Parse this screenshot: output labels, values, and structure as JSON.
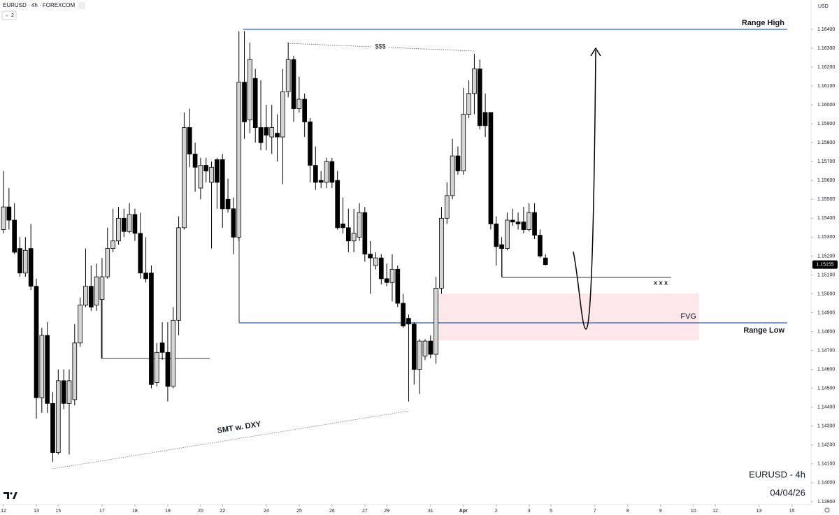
{
  "chart_data": {
    "type": "candlestick",
    "symbol_title": "EURUSD · 4h · FOREXCOM",
    "indicator_count": 2,
    "currency": "USD",
    "watermark_symbol": "EURUSD - 4h",
    "watermark_date": "04/04/26",
    "annotations": {
      "range_high": "Range High",
      "range_low": "Range Low",
      "liquidity": "$$$",
      "smt": "SMT w. DXY",
      "fvg": "FVG",
      "marks": "x x x"
    },
    "last_price": 1.15155,
    "up_color": "#d4d4d4",
    "down_color": "#000000",
    "x": [
      0,
      1,
      2,
      3,
      4,
      5,
      6,
      7,
      8,
      9,
      10,
      11,
      12,
      13,
      14,
      15,
      16,
      17,
      18,
      19,
      20,
      21,
      22,
      23,
      24,
      25,
      26,
      27,
      28,
      29,
      30,
      31,
      32,
      33,
      34,
      35,
      36,
      37,
      38,
      39,
      40,
      41,
      42,
      43,
      44,
      45,
      46,
      47,
      48,
      49,
      50,
      51,
      52,
      53,
      54,
      55,
      56,
      57,
      58,
      59,
      60,
      61,
      62,
      63,
      64,
      65,
      66,
      67,
      68,
      69,
      70,
      71,
      72,
      73,
      74,
      75,
      76,
      77,
      78,
      79,
      80,
      81,
      82,
      83,
      84,
      85,
      86,
      87,
      88,
      89,
      90,
      91,
      92,
      93,
      94,
      95,
      96,
      97,
      98,
      99
    ],
    "open": [
      1.1534,
      1.1546,
      1.1539,
      1.1524,
      1.1511,
      1.1524,
      1.1504,
      1.1445,
      1.1478,
      1.1442,
      1.1416,
      1.1454,
      1.1442,
      1.1444,
      1.1474,
      1.1494,
      1.1504,
      1.1494,
      1.1497,
      1.1509,
      1.1524,
      1.1528,
      1.154,
      1.1533,
      1.1542,
      1.1532,
      1.1511,
      1.1511,
      1.1453,
      1.1474,
      1.1469,
      1.1451,
      1.1486,
      1.1535,
      1.1588,
      1.1574,
      1.1556,
      1.1568,
      1.1559,
      1.1571,
      1.1571,
      1.155,
      1.1545,
      1.153,
      1.1612,
      1.1592,
      1.1614,
      1.1588,
      1.1588,
      1.1583,
      1.1585,
      1.1583,
      1.1607,
      1.1624,
      1.1598,
      1.1603,
      1.1591,
      1.1568,
      1.156,
      1.1559,
      1.157,
      1.156,
      1.1537,
      1.1535,
      1.1528,
      1.153,
      1.1543,
      1.1521,
      1.1515,
      1.1519,
      1.1508,
      1.1506,
      1.1513,
      1.1495,
      1.1487,
      1.1484,
      1.146,
      1.1467,
      1.1475,
      1.1468,
      1.1503,
      1.154,
      1.1552,
      1.1573,
      1.1565,
      1.1595,
      1.1606,
      1.1619,
      1.1596,
      1.1596,
      1.1537,
      1.1526,
      1.1524,
      1.1539,
      1.1538,
      1.1538,
      1.1534,
      1.1543,
      1.1531,
      1.1519
    ],
    "high": [
      1.1565,
      1.1556,
      1.1548,
      1.153,
      1.153,
      1.1537,
      1.1508,
      1.1482,
      1.1485,
      1.1448,
      1.146,
      1.146,
      1.146,
      1.1484,
      1.1498,
      1.1524,
      1.1515,
      1.1516,
      1.1519,
      1.1535,
      1.1545,
      1.1546,
      1.1545,
      1.1548,
      1.1545,
      1.1543,
      1.153,
      1.1515,
      1.1474,
      1.1485,
      1.1485,
      1.1493,
      1.1541,
      1.1596,
      1.1598,
      1.158,
      1.1572,
      1.1572,
      1.157,
      1.1572,
      1.1574,
      1.1561,
      1.1551,
      1.1639,
      1.1639,
      1.1633,
      1.1619,
      1.1613,
      1.16,
      1.16,
      1.1595,
      1.1619,
      1.1633,
      1.1626,
      1.1615,
      1.1606,
      1.1593,
      1.1578,
      1.1565,
      1.1572,
      1.1572,
      1.1565,
      1.1551,
      1.1545,
      1.1545,
      1.1548,
      1.1546,
      1.1528,
      1.1522,
      1.1521,
      1.1516,
      1.1521,
      1.1515,
      1.15,
      1.1489,
      1.1485,
      1.1476,
      1.1476,
      1.1478,
      1.1509,
      1.1546,
      1.1559,
      1.1582,
      1.1578,
      1.1609,
      1.1613,
      1.1627,
      1.1624,
      1.1606,
      1.1596,
      1.1541,
      1.153,
      1.1543,
      1.1545,
      1.1543,
      1.1546,
      1.1548,
      1.1548,
      1.1534,
      1.1521
    ],
    "low": [
      1.1532,
      1.1534,
      1.1521,
      1.1509,
      1.1509,
      1.1502,
      1.1434,
      1.1437,
      1.1437,
      1.1411,
      1.1415,
      1.1439,
      1.1415,
      1.1441,
      1.1472,
      1.1493,
      1.1491,
      1.1491,
      1.1466,
      1.1508,
      1.1522,
      1.1526,
      1.153,
      1.1532,
      1.1528,
      1.1508,
      1.1506,
      1.145,
      1.1451,
      1.1465,
      1.1443,
      1.145,
      1.1478,
      1.1534,
      1.1567,
      1.1554,
      1.155,
      1.1559,
      1.1524,
      1.1545,
      1.1535,
      1.1543,
      1.1521,
      1.1528,
      1.1582,
      1.1585,
      1.158,
      1.1576,
      1.1576,
      1.1574,
      1.157,
      1.1558,
      1.1604,
      1.1591,
      1.1596,
      1.1583,
      1.1559,
      1.1555,
      1.1556,
      1.1556,
      1.1556,
      1.1534,
      1.1532,
      1.1522,
      1.1522,
      1.1528,
      1.1517,
      1.15,
      1.1513,
      1.1505,
      1.1504,
      1.1496,
      1.1493,
      1.1482,
      1.1443,
      1.1452,
      1.1447,
      1.1465,
      1.1466,
      1.1463,
      1.15,
      1.1537,
      1.155,
      1.1563,
      1.1563,
      1.1593,
      1.1595,
      1.1587,
      1.1583,
      1.1534,
      1.1515,
      1.1509,
      1.1523,
      1.1536,
      1.1534,
      1.1532,
      1.1533,
      1.1529,
      1.1519,
      1.1515
    ],
    "close": [
      1.1546,
      1.1539,
      1.1522,
      1.1511,
      1.1523,
      1.1504,
      1.1445,
      1.1478,
      1.1442,
      1.1416,
      1.1454,
      1.1442,
      1.1454,
      1.1474,
      1.1494,
      1.1504,
      1.1493,
      1.1509,
      1.1509,
      1.1524,
      1.1528,
      1.154,
      1.1533,
      1.1542,
      1.1532,
      1.1511,
      1.1508,
      1.1452,
      1.1469,
      1.1469,
      1.1451,
      1.1486,
      1.1535,
      1.1588,
      1.1574,
      1.1567,
      1.1568,
      1.1565,
      1.1567,
      1.1559,
      1.1545,
      1.1545,
      1.153,
      1.1612,
      1.1591,
      1.1624,
      1.1588,
      1.158,
      1.1584,
      1.1588,
      1.1583,
      1.1607,
      1.1624,
      1.1598,
      1.1603,
      1.1591,
      1.1568,
      1.1559,
      1.1559,
      1.157,
      1.1559,
      1.1535,
      1.1535,
      1.1528,
      1.1532,
      1.1543,
      1.1521,
      1.1519,
      1.1519,
      1.1508,
      1.1506,
      1.1513,
      1.1495,
      1.1483,
      1.1484,
      1.146,
      1.1475,
      1.1475,
      1.1468,
      1.1503,
      1.154,
      1.1552,
      1.1573,
      1.1565,
      1.1595,
      1.1606,
      1.1619,
      1.1589,
      1.1589,
      1.1537,
      1.1525,
      1.1524,
      1.1539,
      1.1538,
      1.1537,
      1.1534,
      1.1543,
      1.1531,
      1.152,
      1.15155
    ],
    "xlim": [
      -0.64,
      147.5
    ],
    "ylim": [
      1.13885,
      1.16555
    ],
    "xticks": [
      {
        "value": 0,
        "label": "12"
      },
      {
        "value": 6,
        "label": "13"
      },
      {
        "value": 10,
        "label": "15"
      },
      {
        "value": 18,
        "label": "17"
      },
      {
        "value": 24,
        "label": "18"
      },
      {
        "value": 30,
        "label": "19"
      },
      {
        "value": 36,
        "label": "20"
      },
      {
        "value": 40,
        "label": "22"
      },
      {
        "value": 48,
        "label": "24"
      },
      {
        "value": 54,
        "label": "25"
      },
      {
        "value": 60,
        "label": "26"
      },
      {
        "value": 66,
        "label": "27"
      },
      {
        "value": 70,
        "label": "29"
      },
      {
        "value": 78,
        "label": "31"
      },
      {
        "value": 84,
        "label": "Apr"
      },
      {
        "value": 90,
        "label": "2"
      },
      {
        "value": 96,
        "label": "3"
      },
      {
        "value": 100,
        "label": "5"
      },
      {
        "value": 108,
        "label": "7"
      },
      {
        "value": 114,
        "label": "8"
      },
      {
        "value": 120,
        "label": "9"
      },
      {
        "value": 126,
        "label": "10"
      },
      {
        "value": 130,
        "label": "12"
      },
      {
        "value": 138,
        "label": "13"
      },
      {
        "value": 144,
        "label": "15"
      }
    ],
    "yticks": [
      {
        "value": 1.139,
        "label": "1.13900"
      },
      {
        "value": 1.14,
        "label": "1.14000"
      },
      {
        "value": 1.141,
        "label": "1.14100"
      },
      {
        "value": 1.142,
        "label": "1.14200"
      },
      {
        "value": 1.143,
        "label": "1.14300"
      },
      {
        "value": 1.144,
        "label": "1.14400"
      },
      {
        "value": 1.145,
        "label": "1.14500"
      },
      {
        "value": 1.146,
        "label": "1.14600"
      },
      {
        "value": 1.147,
        "label": "1.14700"
      },
      {
        "value": 1.148,
        "label": "1.14800"
      },
      {
        "value": 1.149,
        "label": "1.14900"
      },
      {
        "value": 1.15,
        "label": "1.15000"
      },
      {
        "value": 1.151,
        "label": "1.15100"
      },
      {
        "value": 1.152,
        "label": "1.15200"
      },
      {
        "value": 1.153,
        "label": "1.15300"
      },
      {
        "value": 1.154,
        "label": "1.15400"
      },
      {
        "value": 1.155,
        "label": "1.15500"
      },
      {
        "value": 1.156,
        "label": "1.15600"
      },
      {
        "value": 1.157,
        "label": "1.15700"
      },
      {
        "value": 1.158,
        "label": "1.15800"
      },
      {
        "value": 1.159,
        "label": "1.15900"
      },
      {
        "value": 1.16,
        "label": "1.16000"
      },
      {
        "value": 1.161,
        "label": "1.16100"
      },
      {
        "value": 1.162,
        "label": "1.16200"
      },
      {
        "value": 1.163,
        "label": "1.16300"
      },
      {
        "value": 1.164,
        "label": "1.16400"
      }
    ],
    "grid": false
  }
}
